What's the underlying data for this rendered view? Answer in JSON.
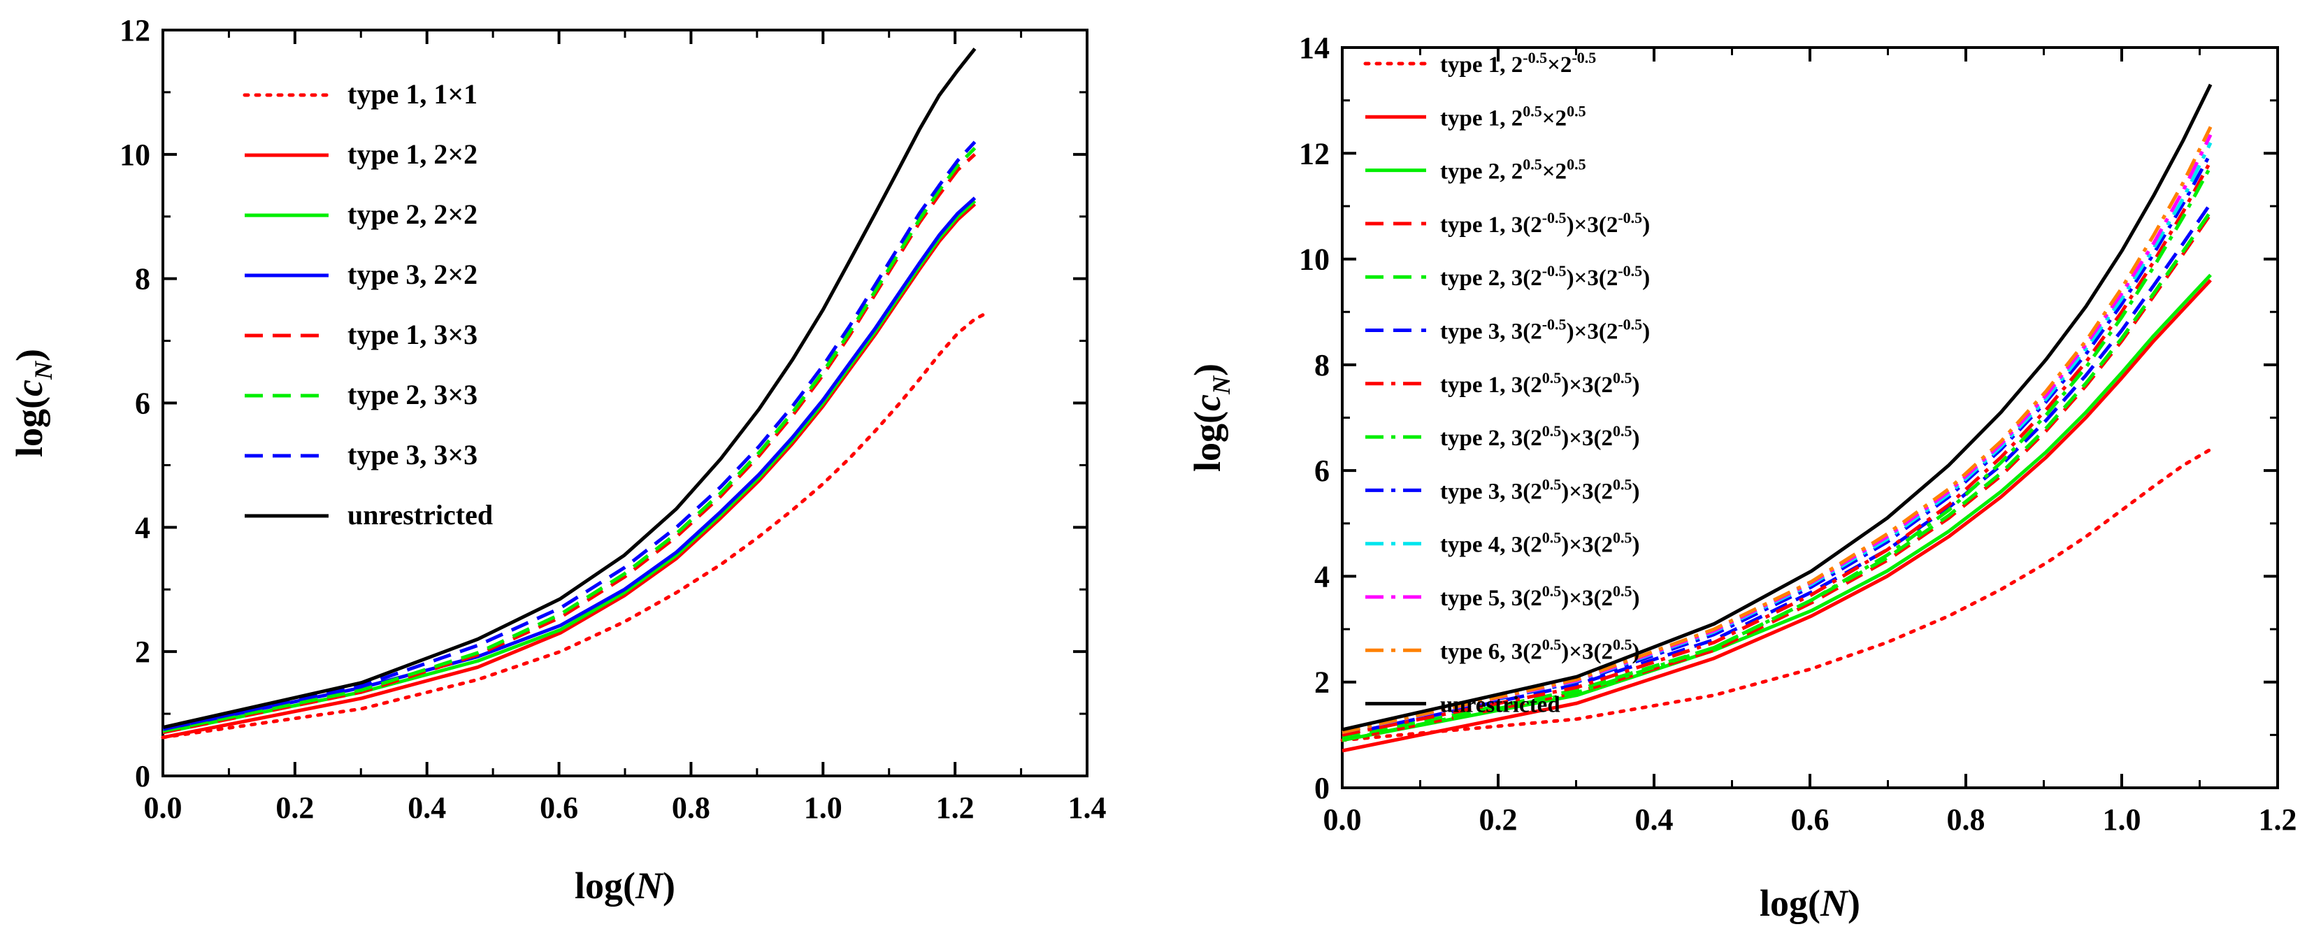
{
  "chart_data": [
    {
      "type": "line",
      "panel": "left",
      "xlabel": "log(N)",
      "ylabel": "log(c_N)",
      "xlim": [
        0.0,
        1.4
      ],
      "ylim": [
        0,
        12
      ],
      "xticks": [
        "0.0",
        "0.2",
        "0.4",
        "0.6",
        "0.8",
        "1.0",
        "1.2",
        "1.4"
      ],
      "yticks": [
        "0",
        "2",
        "4",
        "6",
        "8",
        "10",
        "12"
      ],
      "legend_position": "top-left",
      "x": [
        0.0,
        0.301,
        0.477,
        0.602,
        0.699,
        0.778,
        0.845,
        0.903,
        0.954,
        1.0,
        1.041,
        1.079,
        1.114,
        1.146,
        1.176,
        1.204,
        1.23
      ],
      "series": [
        {
          "name": "type 1, 1×1",
          "color": "#ff0000",
          "dash": "dotted",
          "x": [
            0.0,
            0.301,
            0.477,
            0.602,
            0.699,
            0.778,
            0.845,
            0.903,
            0.954,
            1.0,
            1.041,
            1.079,
            1.114,
            1.146,
            1.176,
            1.204,
            1.23,
            1.243
          ],
          "values": [
            0.62,
            1.08,
            1.55,
            2.0,
            2.48,
            2.95,
            3.4,
            3.85,
            4.28,
            4.7,
            5.12,
            5.55,
            5.97,
            6.38,
            6.78,
            7.12,
            7.35,
            7.42
          ]
        },
        {
          "name": "type 1, 2×2",
          "color": "#ff0000",
          "dash": "solid",
          "values": [
            0.62,
            1.25,
            1.75,
            2.3,
            2.9,
            3.5,
            4.15,
            4.75,
            5.35,
            5.95,
            6.55,
            7.1,
            7.65,
            8.15,
            8.6,
            8.95,
            9.2
          ]
        },
        {
          "name": "type 2, 2×2",
          "color": "#00ee00",
          "dash": "solid",
          "values": [
            0.7,
            1.35,
            1.85,
            2.35,
            2.95,
            3.55,
            4.2,
            4.8,
            5.4,
            6.0,
            6.6,
            7.15,
            7.7,
            8.2,
            8.65,
            9.0,
            9.25
          ]
        },
        {
          "name": "type 3, 2×2",
          "color": "#0000ff",
          "dash": "solid",
          "values": [
            0.75,
            1.42,
            1.92,
            2.42,
            3.0,
            3.6,
            4.25,
            4.85,
            5.45,
            6.05,
            6.65,
            7.2,
            7.75,
            8.25,
            8.7,
            9.05,
            9.3
          ]
        },
        {
          "name": "type 1, 3×3",
          "color": "#ff0000",
          "dash": "dashed",
          "values": [
            0.7,
            1.35,
            1.95,
            2.55,
            3.2,
            3.85,
            4.5,
            5.15,
            5.8,
            6.45,
            7.1,
            7.75,
            8.35,
            8.9,
            9.35,
            9.75,
            10.0
          ]
        },
        {
          "name": "type 2, 3×3",
          "color": "#00ee00",
          "dash": "dashed",
          "values": [
            0.72,
            1.38,
            1.98,
            2.6,
            3.25,
            3.9,
            4.55,
            5.2,
            5.85,
            6.5,
            7.15,
            7.8,
            8.4,
            8.95,
            9.42,
            9.82,
            10.1
          ]
        },
        {
          "name": "type 3, 3×3",
          "color": "#0000ff",
          "dash": "dashed",
          "values": [
            0.75,
            1.45,
            2.1,
            2.7,
            3.35,
            4.0,
            4.65,
            5.3,
            5.95,
            6.6,
            7.25,
            7.9,
            8.5,
            9.05,
            9.5,
            9.9,
            10.2
          ]
        },
        {
          "name": "unrestricted",
          "color": "#000000",
          "dash": "solid",
          "values": [
            0.78,
            1.5,
            2.2,
            2.85,
            3.55,
            4.3,
            5.1,
            5.9,
            6.7,
            7.5,
            8.3,
            9.05,
            9.75,
            10.4,
            10.95,
            11.35,
            11.7
          ]
        }
      ]
    },
    {
      "type": "line",
      "panel": "right",
      "xlabel": "log(N)",
      "ylabel": "log(c_N)",
      "xlim": [
        0.0,
        1.2
      ],
      "ylim": [
        0,
        14
      ],
      "xticks": [
        "0.0",
        "0.2",
        "0.4",
        "0.6",
        "0.8",
        "1.0",
        "1.2"
      ],
      "yticks": [
        "0",
        "2",
        "4",
        "6",
        "8",
        "10",
        "12",
        "14"
      ],
      "legend_position": "top-left",
      "x": [
        0.0,
        0.301,
        0.477,
        0.602,
        0.699,
        0.778,
        0.845,
        0.903,
        0.954,
        1.0,
        1.041,
        1.079,
        1.114
      ],
      "series": [
        {
          "name": "type 1, 2-0.5×2-0.5",
          "label_parts": [
            "type 1, 2",
            "-0.5",
            "×2",
            "-0.5"
          ],
          "color": "#ff0000",
          "dash": "dotted",
          "values": [
            0.9,
            1.3,
            1.75,
            2.25,
            2.75,
            3.25,
            3.75,
            4.25,
            4.75,
            5.25,
            5.7,
            6.1,
            6.4
          ]
        },
        {
          "name": "type 1, 20.5×20.5",
          "label_parts": [
            "type 1, 2",
            "0.5",
            "×2",
            "0.5"
          ],
          "color": "#ff0000",
          "dash": "solid",
          "values": [
            0.7,
            1.6,
            2.45,
            3.25,
            4.0,
            4.75,
            5.5,
            6.25,
            7.0,
            7.75,
            8.45,
            9.05,
            9.6
          ]
        },
        {
          "name": "type 2, 20.5×20.5",
          "label_parts": [
            "type 2, 2",
            "0.5",
            "×2",
            "0.5"
          ],
          "color": "#00ee00",
          "dash": "solid",
          "values": [
            0.9,
            1.75,
            2.6,
            3.35,
            4.1,
            4.85,
            5.6,
            6.35,
            7.1,
            7.85,
            8.55,
            9.15,
            9.7
          ]
        },
        {
          "name": "type 1, 3(2-0.5)×3(2-0.5)",
          "label_parts": [
            "type 1, 3(2",
            "-0.5",
            ")×3(2",
            "-0.5",
            ")"
          ],
          "color": "#ff0000",
          "dash": "dashed",
          "values": [
            0.9,
            1.8,
            2.6,
            3.5,
            4.3,
            5.1,
            5.9,
            6.75,
            7.6,
            8.45,
            9.3,
            10.1,
            10.85
          ]
        },
        {
          "name": "type 2, 3(2-0.5)×3(2-0.5)",
          "label_parts": [
            "type 2, 3(2",
            "-0.5",
            ")×3(2",
            "-0.5",
            ")"
          ],
          "color": "#00ee00",
          "dash": "dashed",
          "values": [
            0.95,
            1.85,
            2.65,
            3.55,
            4.35,
            5.15,
            5.95,
            6.8,
            7.65,
            8.5,
            9.35,
            10.15,
            10.9
          ]
        },
        {
          "name": "type 3, 3(2-0.5)×3(2-0.5)",
          "label_parts": [
            "type 3, 3(2",
            "-0.5",
            ")×3(2",
            "-0.5",
            ")"
          ],
          "color": "#0000ff",
          "dash": "dashed",
          "values": [
            1.0,
            1.95,
            2.8,
            3.7,
            4.5,
            5.3,
            6.1,
            6.95,
            7.8,
            8.65,
            9.5,
            10.3,
            11.05
          ]
        },
        {
          "name": "type 1, 3(20.5)×3(20.5)",
          "label_parts": [
            "type 1, 3(2",
            "0.5",
            ")×3(2",
            "0.5",
            ")"
          ],
          "color": "#ff0000",
          "dash": "dashdot",
          "values": [
            1.0,
            1.9,
            2.75,
            3.65,
            4.5,
            5.35,
            6.25,
            7.15,
            8.05,
            9.0,
            9.95,
            10.9,
            11.85
          ]
        },
        {
          "name": "type 2, 3(20.5)×3(20.5)",
          "label_parts": [
            "type 2, 3(2",
            "0.5",
            ")×3(2",
            "0.5",
            ")"
          ],
          "color": "#00ee00",
          "dash": "dashdot",
          "values": [
            0.9,
            1.8,
            2.65,
            3.55,
            4.4,
            5.25,
            6.15,
            7.05,
            7.95,
            8.9,
            9.85,
            10.8,
            11.75
          ]
        },
        {
          "name": "type 3, 3(20.5)×3(20.5)",
          "label_parts": [
            "type 3, 3(2",
            "0.5",
            ")×3(2",
            "0.5",
            ")"
          ],
          "color": "#0000ff",
          "dash": "dashdot",
          "values": [
            1.05,
            2.0,
            2.9,
            3.8,
            4.65,
            5.5,
            6.4,
            7.3,
            8.2,
            9.15,
            10.1,
            11.05,
            12.0
          ]
        },
        {
          "name": "type 4, 3(20.5)×3(20.5)",
          "label_parts": [
            "type 4, 3(2",
            "0.5",
            ")×3(2",
            "0.5",
            ")"
          ],
          "color": "#00e5ee",
          "dash": "dashdot",
          "values": [
            1.05,
            2.02,
            2.95,
            3.85,
            4.7,
            5.55,
            6.45,
            7.35,
            8.3,
            9.25,
            10.2,
            11.15,
            12.2
          ]
        },
        {
          "name": "type 5, 3(20.5)×3(20.5)",
          "label_parts": [
            "type 5, 3(2",
            "0.5",
            ")×3(2",
            "0.5",
            ")"
          ],
          "color": "#ff00ff",
          "dash": "dashdot",
          "values": [
            1.05,
            2.03,
            2.97,
            3.88,
            4.75,
            5.6,
            6.5,
            7.42,
            8.38,
            9.35,
            10.3,
            11.3,
            12.35
          ]
        },
        {
          "name": "type 6, 3(20.5)×3(20.5)",
          "label_parts": [
            "type 6, 3(2",
            "0.5",
            ")×3(2",
            "0.5",
            ")"
          ],
          "color": "#ff8000",
          "dash": "dashdot",
          "values": [
            1.05,
            2.05,
            3.0,
            3.9,
            4.8,
            5.65,
            6.55,
            7.5,
            8.45,
            9.45,
            10.45,
            11.45,
            12.5
          ]
        },
        {
          "name": "unrestricted",
          "label_parts": [
            "unrestricted"
          ],
          "color": "#000000",
          "dash": "solid",
          "values": [
            1.1,
            2.1,
            3.1,
            4.1,
            5.1,
            6.1,
            7.1,
            8.1,
            9.1,
            10.15,
            11.2,
            12.25,
            13.3
          ]
        }
      ]
    }
  ]
}
